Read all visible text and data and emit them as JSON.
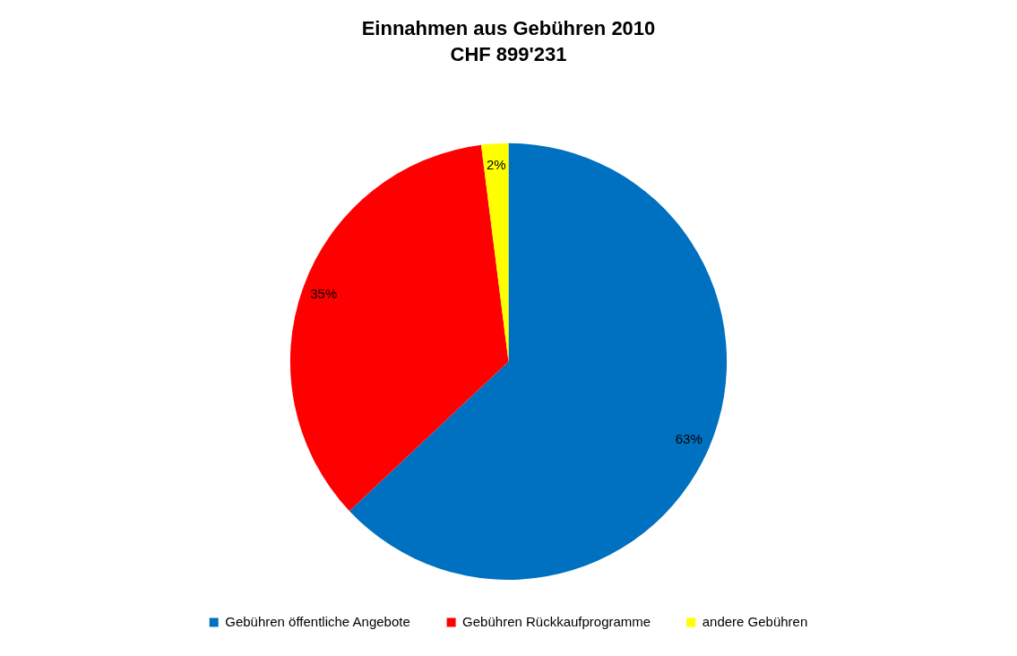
{
  "chart_data": {
    "type": "pie",
    "title": "Einnahmen aus Gebühren 2010",
    "subtitle": "CHF 899'231",
    "categories": [
      "Gebühren öffentliche Angebote",
      "Gebühren Rückkaufprogramme",
      "andere Gebühren"
    ],
    "values": [
      63,
      35,
      2
    ],
    "colors": [
      "#0070c0",
      "#ff0000",
      "#ffff00"
    ],
    "value_labels": [
      "63%",
      "35%",
      "2%"
    ],
    "legend": "bottom"
  }
}
